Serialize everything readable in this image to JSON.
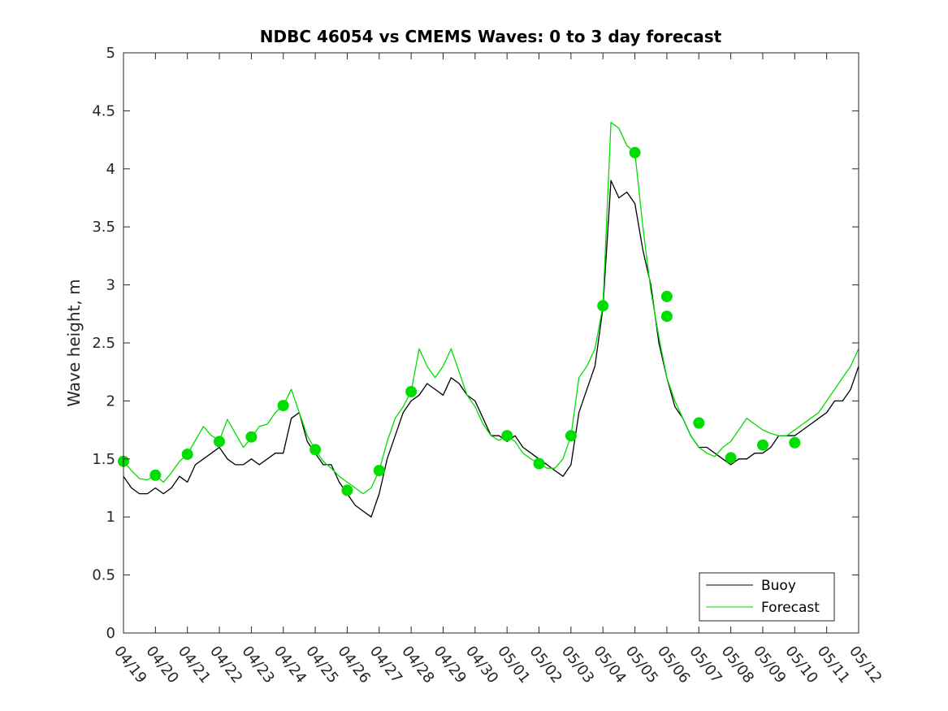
{
  "chart_data": {
    "type": "line",
    "title": "NDBC 46054 vs CMEMS Waves: 0 to 3 day forecast",
    "xlabel": "",
    "ylabel": "Wave height, m",
    "ylim": [
      0,
      5
    ],
    "yticks": [
      "0",
      "0.5",
      "1",
      "1.5",
      "2",
      "2.5",
      "3",
      "3.5",
      "4",
      "4.5",
      "5"
    ],
    "xlim": [
      "04/19",
      "05/12"
    ],
    "xticks": [
      "04/19",
      "04/20",
      "04/21",
      "04/22",
      "04/23",
      "04/24",
      "04/25",
      "04/26",
      "04/27",
      "04/28",
      "04/29",
      "04/30",
      "05/01",
      "05/02",
      "05/03",
      "05/04",
      "05/05",
      "05/06",
      "05/07",
      "05/08",
      "05/09",
      "05/10",
      "05/11",
      "05/12"
    ],
    "grid": false,
    "legend": {
      "placement": "bottom-right",
      "entries": [
        {
          "label": "Buoy",
          "color": "#000000"
        },
        {
          "label": "Forecast",
          "color": "#00dd00"
        }
      ]
    },
    "series": [
      {
        "name": "Buoy",
        "color": "#000000",
        "x": [
          "04/19",
          "04/19 06h",
          "04/19 12h",
          "04/19 18h",
          "04/20",
          "04/20 06h",
          "04/20 12h",
          "04/20 18h",
          "04/21",
          "04/21 06h",
          "04/21 12h",
          "04/21 18h",
          "04/22",
          "04/22 06h",
          "04/22 12h",
          "04/22 18h",
          "04/23",
          "04/23 06h",
          "04/23 12h",
          "04/23 18h",
          "04/24",
          "04/24 06h",
          "04/24 12h",
          "04/24 18h",
          "04/25",
          "04/25 06h",
          "04/25 12h",
          "04/25 18h",
          "04/26",
          "04/26 06h",
          "04/26 12h",
          "04/26 18h",
          "04/27",
          "04/27 06h",
          "04/27 12h",
          "04/27 18h",
          "04/28",
          "04/28 06h",
          "04/28 12h",
          "04/28 18h",
          "04/29",
          "04/29 06h",
          "04/29 12h",
          "04/29 18h",
          "04/30",
          "04/30 06h",
          "04/30 12h",
          "04/30 18h",
          "05/01",
          "05/01 06h",
          "05/01 12h",
          "05/01 18h",
          "05/02",
          "05/02 06h",
          "05/02 12h",
          "05/02 18h",
          "05/03",
          "05/03 06h",
          "05/03 12h",
          "05/03 18h",
          "05/04",
          "05/04 06h",
          "05/04 12h",
          "05/04 18h",
          "05/05",
          "05/05 06h",
          "05/05 12h",
          "05/05 18h",
          "05/06",
          "05/06 06h",
          "05/06 12h",
          "05/06 18h",
          "05/07",
          "05/07 06h",
          "05/07 12h",
          "05/07 18h",
          "05/08",
          "05/08 06h",
          "05/08 12h",
          "05/08 18h",
          "05/09",
          "05/09 06h",
          "05/09 12h",
          "05/09 18h",
          "05/10",
          "05/10 06h",
          "05/10 12h",
          "05/10 18h",
          "05/11",
          "05/11 06h",
          "05/11 12h",
          "05/11 18h",
          "05/12"
        ],
        "values": [
          1.35,
          1.25,
          1.2,
          1.2,
          1.25,
          1.2,
          1.25,
          1.35,
          1.3,
          1.45,
          1.5,
          1.55,
          1.6,
          1.5,
          1.45,
          1.45,
          1.5,
          1.45,
          1.5,
          1.55,
          1.55,
          1.85,
          1.9,
          1.65,
          1.55,
          1.45,
          1.45,
          1.3,
          1.2,
          1.1,
          1.05,
          1.0,
          1.2,
          1.5,
          1.7,
          1.9,
          2.0,
          2.05,
          2.15,
          2.1,
          2.05,
          2.2,
          2.15,
          2.05,
          2.0,
          1.85,
          1.7,
          1.7,
          1.65,
          1.7,
          1.6,
          1.55,
          1.5,
          1.45,
          1.4,
          1.35,
          1.45,
          1.9,
          2.1,
          2.3,
          2.8,
          3.9,
          3.75,
          3.8,
          3.7,
          3.3,
          3.0,
          2.5,
          2.2,
          1.95,
          1.85,
          1.7,
          1.6,
          1.6,
          1.55,
          1.5,
          1.45,
          1.5,
          1.5,
          1.55,
          1.55,
          1.6,
          1.7,
          1.7,
          1.7,
          1.75,
          1.8,
          1.85,
          1.9,
          2.0,
          2.0,
          2.1,
          2.3
        ]
      },
      {
        "name": "Forecast",
        "color": "#00dd00",
        "x": [
          "04/19",
          "04/19 06h",
          "04/19 12h",
          "04/19 18h",
          "04/20",
          "04/20 06h",
          "04/20 12h",
          "04/20 18h",
          "04/21",
          "04/21 06h",
          "04/21 12h",
          "04/21 18h",
          "04/22",
          "04/22 06h",
          "04/22 12h",
          "04/22 18h",
          "04/23",
          "04/23 06h",
          "04/23 12h",
          "04/23 18h",
          "04/24",
          "04/24 06h",
          "04/24 12h",
          "04/24 18h",
          "04/25",
          "04/25 06h",
          "04/25 12h",
          "04/25 18h",
          "04/26",
          "04/26 06h",
          "04/26 12h",
          "04/26 18h",
          "04/27",
          "04/27 06h",
          "04/27 12h",
          "04/27 18h",
          "04/28",
          "04/28 06h",
          "04/28 12h",
          "04/28 18h",
          "04/29",
          "04/29 06h",
          "04/29 12h",
          "04/29 18h",
          "04/30",
          "04/30 06h",
          "04/30 12h",
          "04/30 18h",
          "05/01",
          "05/01 06h",
          "05/01 12h",
          "05/01 18h",
          "05/02",
          "05/02 06h",
          "05/02 12h",
          "05/02 18h",
          "05/03",
          "05/03 06h",
          "05/03 12h",
          "05/03 18h",
          "05/04",
          "05/04 06h",
          "05/04 12h",
          "05/04 18h",
          "05/05",
          "05/05 06h",
          "05/05 12h",
          "05/05 18h",
          "05/06",
          "05/06 06h",
          "05/06 12h",
          "05/06 18h",
          "05/07",
          "05/07 06h",
          "05/07 12h",
          "05/07 18h",
          "05/08",
          "05/08 06h",
          "05/08 12h",
          "05/08 18h",
          "05/09",
          "05/09 06h",
          "05/09 12h",
          "05/09 18h",
          "05/10",
          "05/10 06h",
          "05/10 12h",
          "05/10 18h",
          "05/11",
          "05/11 06h",
          "05/11 12h",
          "05/11 18h",
          "05/12"
        ],
        "values": [
          1.48,
          1.4,
          1.33,
          1.32,
          1.36,
          1.3,
          1.38,
          1.48,
          1.54,
          1.66,
          1.78,
          1.7,
          1.66,
          1.84,
          1.72,
          1.6,
          1.68,
          1.78,
          1.8,
          1.9,
          1.96,
          2.1,
          1.9,
          1.7,
          1.58,
          1.48,
          1.42,
          1.35,
          1.3,
          1.25,
          1.2,
          1.25,
          1.4,
          1.65,
          1.85,
          1.95,
          2.08,
          2.45,
          2.3,
          2.2,
          2.3,
          2.45,
          2.25,
          2.05,
          1.95,
          1.8,
          1.7,
          1.66,
          1.7,
          1.65,
          1.55,
          1.5,
          1.46,
          1.42,
          1.42,
          1.5,
          1.7,
          2.2,
          2.3,
          2.45,
          2.82,
          4.4,
          4.35,
          4.2,
          4.14,
          3.5,
          2.95,
          2.55,
          2.2,
          2.0,
          1.85,
          1.7,
          1.6,
          1.55,
          1.52,
          1.6,
          1.65,
          1.75,
          1.85,
          1.8,
          1.75,
          1.72,
          1.7,
          1.7,
          1.75,
          1.8,
          1.85,
          1.9,
          2.0,
          2.1,
          2.2,
          2.3,
          2.45
        ]
      }
    ],
    "markers": {
      "series": "Forecast",
      "shape": "filled-circle",
      "x": [
        "04/19",
        "04/20",
        "04/21",
        "04/22",
        "04/23",
        "04/24",
        "04/25",
        "04/26",
        "04/27",
        "04/28",
        "05/01",
        "05/02",
        "05/03",
        "05/04",
        "05/05",
        "05/06",
        "05/06",
        "05/07",
        "05/08",
        "05/09",
        "05/10"
      ],
      "values": [
        1.48,
        1.36,
        1.54,
        1.65,
        1.69,
        1.96,
        1.58,
        1.23,
        1.4,
        2.08,
        1.7,
        1.46,
        1.7,
        2.82,
        4.14,
        2.9,
        2.73,
        1.81,
        1.51,
        1.62,
        1.64
      ]
    }
  }
}
